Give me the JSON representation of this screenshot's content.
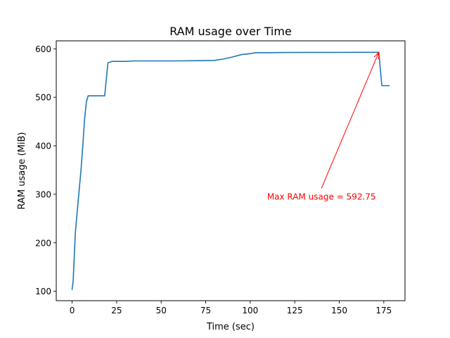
{
  "chart_data": {
    "type": "line",
    "title": "RAM usage over Time",
    "xlabel": "Time (sec)",
    "ylabel": "RAM usage (MiB)",
    "xlim": [
      -8.9,
      186.9
    ],
    "ylim": [
      80.6,
      616.4
    ],
    "xticks": [
      0,
      25,
      50,
      75,
      100,
      125,
      150,
      175
    ],
    "yticks": [
      100,
      200,
      300,
      400,
      500,
      600
    ],
    "grid": false,
    "series": [
      {
        "color": "#1f77b4",
        "x": [
          0,
          0.6,
          1.8,
          3,
          4,
          5,
          6,
          7,
          8,
          9,
          10,
          12,
          15,
          18.3,
          20.1,
          22.5,
          25,
          30,
          35,
          45,
          50,
          60,
          70,
          80,
          85,
          90,
          95,
          100,
          103,
          110,
          120,
          130,
          140,
          150,
          160,
          172.2,
          173.9,
          175,
          178
        ],
        "values": [
          104,
          122,
          220,
          270,
          310,
          350,
          400,
          455,
          490,
          503,
          503,
          503,
          503,
          503,
          571,
          574,
          574,
          574,
          575,
          575,
          575,
          575,
          575.5,
          576,
          579,
          583,
          588,
          590,
          592,
          592,
          592.3,
          592.5,
          592.5,
          592.6,
          592.7,
          592.75,
          524,
          524,
          524
        ]
      }
    ],
    "annotation": {
      "text": "Max RAM usage = 592.75",
      "color": "#ff0000",
      "xy": [
        172.2,
        592.75
      ],
      "xytext": [
        140,
        295
      ]
    }
  }
}
